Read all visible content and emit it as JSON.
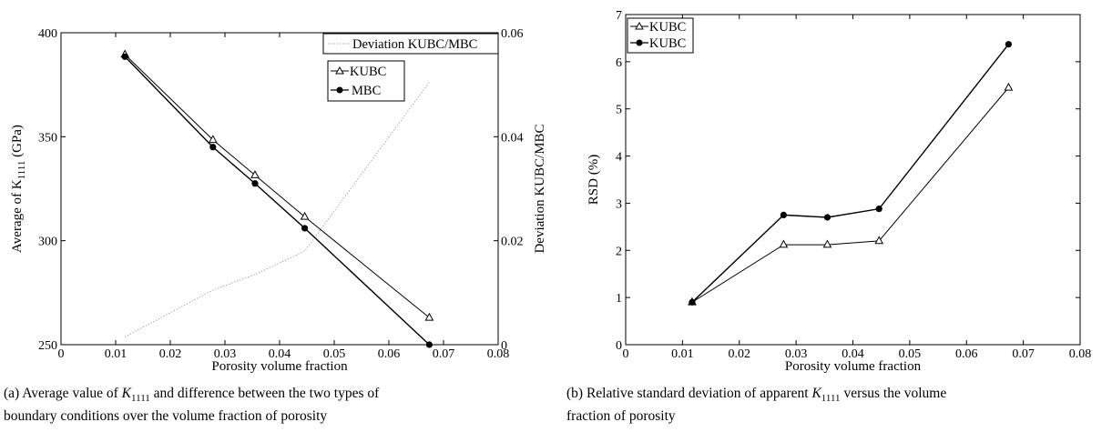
{
  "chart_data": [
    {
      "type": "line",
      "xlabel": "Porosity volume fraction",
      "ylabel": "Average of K",
      "ylabel_sub": "1111",
      "ylabel_unit": " (GPa)",
      "y2label": "Deviation KUBC/MBC",
      "xlim": [
        0,
        0.08
      ],
      "ylim": [
        250,
        400
      ],
      "y2lim": [
        0,
        0.06
      ],
      "xticks": [
        "0",
        "0.01",
        "0.02",
        "0.03",
        "0.04",
        "0.05",
        "0.06",
        "0.07",
        "0.08"
      ],
      "yticks": [
        "250",
        "300",
        "350",
        "400"
      ],
      "y2ticks": [
        "0",
        "0.02",
        "0.04",
        "0.06"
      ],
      "x": [
        0.0117,
        0.0278,
        0.0355,
        0.0446,
        0.0674
      ],
      "series": [
        {
          "name": "KUBC",
          "marker": "triangle-open",
          "values": [
            389.5,
            348.5,
            331.5,
            311.5,
            263.0
          ],
          "color": "#000000"
        },
        {
          "name": "MBC",
          "marker": "circle-filled",
          "values": [
            388.5,
            345.0,
            327.5,
            306.0,
            250.0
          ],
          "color": "#000000"
        }
      ],
      "deviation_series": {
        "name": "Deviation KUBC/MBC",
        "axis": "right",
        "style": "dotted",
        "color": "#999999",
        "x": [
          0.0117,
          0.0278,
          0.0355,
          0.0446,
          0.0674
        ],
        "values": [
          0.0015,
          0.0105,
          0.0135,
          0.018,
          0.0505
        ]
      },
      "legend_placement": "top-right",
      "grid": false
    },
    {
      "type": "line",
      "xlabel": "Porosity volume fraction",
      "ylabel": "RSD (%)",
      "xlim": [
        0,
        0.08
      ],
      "ylim": [
        0,
        7
      ],
      "xticks": [
        "0",
        "0.01",
        "0.02",
        "0.03",
        "0.04",
        "0.05",
        "0.06",
        "0.07",
        "0.08"
      ],
      "yticks": [
        "0",
        "1",
        "2",
        "3",
        "4",
        "5",
        "6",
        "7"
      ],
      "x": [
        0.0117,
        0.0278,
        0.0355,
        0.0446,
        0.0674
      ],
      "series": [
        {
          "name": "KUBC",
          "marker": "triangle-open",
          "values": [
            0.9,
            2.12,
            2.12,
            2.2,
            5.45
          ],
          "color": "#000000"
        },
        {
          "name": "KUBC",
          "marker": "circle-filled",
          "values": [
            0.9,
            2.75,
            2.7,
            2.88,
            6.37
          ],
          "color": "#000000"
        }
      ],
      "legend_placement": "top-left",
      "grid": false
    }
  ],
  "captions": {
    "a_prefix": "(a) Average value of ",
    "a_math": "K",
    "a_math_sub": "1111",
    "a_suffix_line1": " and difference between the two types of",
    "a_line2": "boundary conditions over the volume fraction of porosity",
    "b_prefix": "(b) Relative standard deviation of apparent ",
    "b_math": "K",
    "b_math_sub": "1111",
    "b_suffix_line1": " versus the volume",
    "b_line2": "fraction of porosity"
  }
}
